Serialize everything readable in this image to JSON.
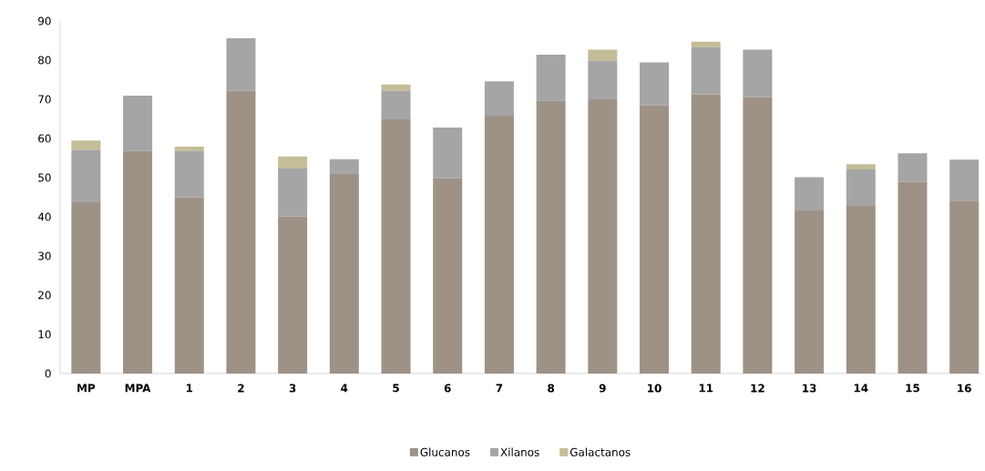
{
  "chart_data": {
    "type": "bar",
    "stacked": true,
    "categories": [
      "MP",
      "MPA",
      "1",
      "2",
      "3",
      "4",
      "5",
      "6",
      "7",
      "8",
      "9",
      "10",
      "11",
      "12",
      "13",
      "14",
      "15",
      "16"
    ],
    "series": [
      {
        "name": "Glucanos",
        "color": "#9e9186",
        "values": [
          43.7,
          56.8,
          45.0,
          72.2,
          40.1,
          51.1,
          64.9,
          49.8,
          65.8,
          69.6,
          70.0,
          68.4,
          71.3,
          70.5,
          41.6,
          42.8,
          48.9,
          44.1
        ]
      },
      {
        "name": "Xilanos",
        "color": "#a5a5a5",
        "values": [
          13.4,
          14.1,
          11.8,
          13.4,
          12.2,
          3.6,
          7.3,
          13.0,
          8.8,
          11.8,
          9.8,
          11.0,
          12.0,
          12.2,
          8.5,
          9.3,
          7.3,
          10.5
        ]
      },
      {
        "name": "Galactanos",
        "color": "#c4bd97",
        "values": [
          2.4,
          null,
          1.1,
          null,
          3.1,
          null,
          1.6,
          null,
          null,
          null,
          2.9,
          null,
          1.4,
          null,
          null,
          1.3,
          null,
          null
        ]
      }
    ],
    "ylim": [
      0,
      90
    ],
    "yticks": [
      0,
      10,
      20,
      30,
      40,
      50,
      60,
      70,
      80,
      90
    ],
    "grid": false,
    "legend": "bottom"
  }
}
